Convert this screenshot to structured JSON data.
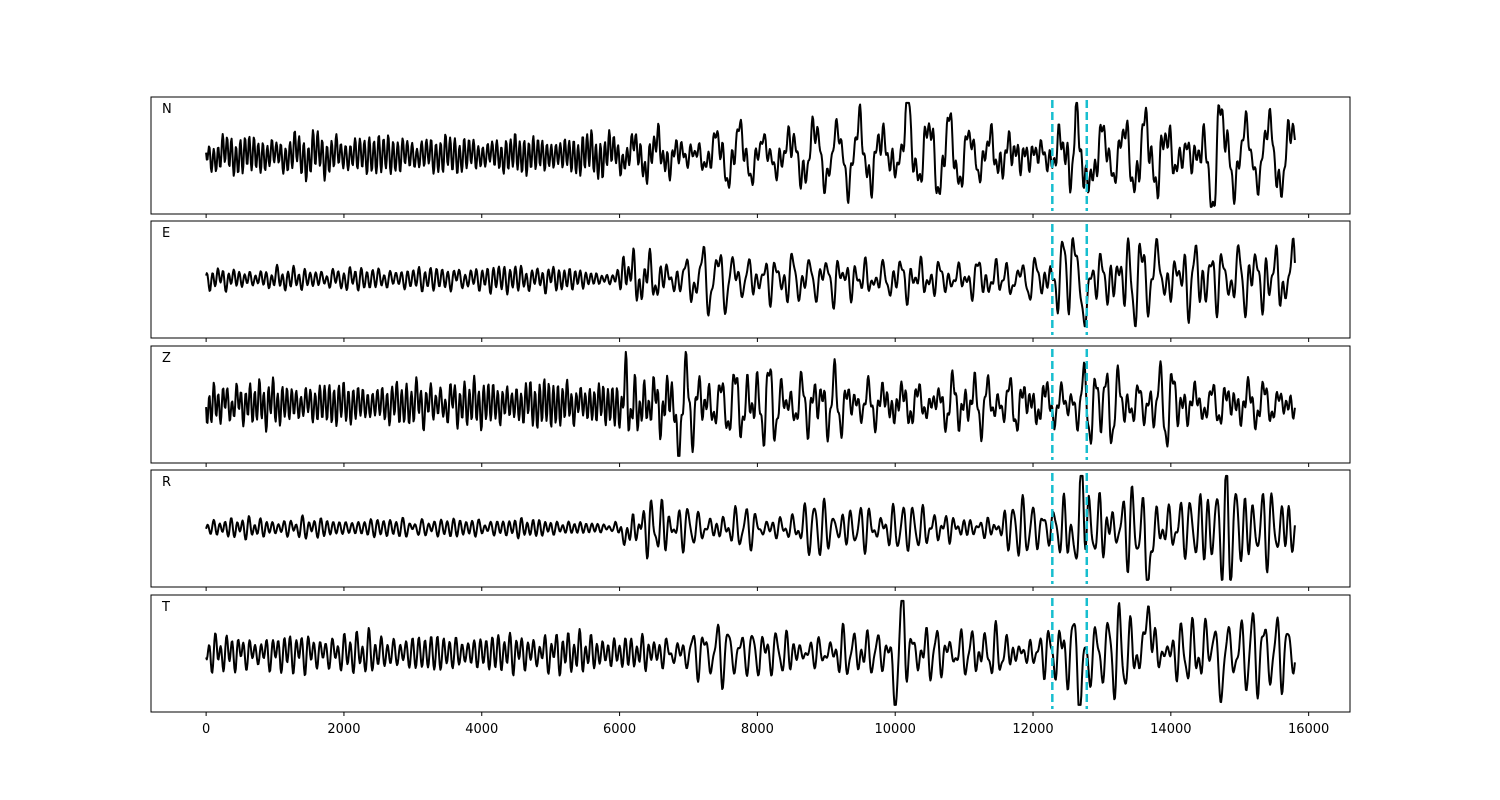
{
  "chart_data": {
    "type": "line",
    "title": "",
    "xlabel": "",
    "ylabel": "",
    "xlim": [
      -800,
      16600
    ],
    "x_end": 15800,
    "xticks": [
      0,
      2000,
      4000,
      6000,
      8000,
      10000,
      12000,
      14000,
      16000
    ],
    "xtick_labels": [
      "0",
      "2000",
      "4000",
      "6000",
      "8000",
      "10000",
      "12000",
      "14000",
      "16000"
    ],
    "grid": false,
    "legend": "none",
    "line_color": "#000000",
    "pick_color": "#17becf",
    "picks": [
      12280,
      12780
    ],
    "channels": [
      {
        "label": "N",
        "envelope": [
          [
            0,
            0.3
          ],
          [
            2000,
            0.35
          ],
          [
            4000,
            0.3
          ],
          [
            6000,
            0.35
          ],
          [
            8000,
            0.45
          ],
          [
            10000,
            0.5
          ],
          [
            12000,
            0.45
          ],
          [
            12500,
            0.6
          ],
          [
            13000,
            0.55
          ],
          [
            14000,
            0.6
          ],
          [
            15800,
            0.45
          ]
        ],
        "events": [
          {
            "x": 10180,
            "amp": 0.95,
            "width": 60
          },
          {
            "x": 12620,
            "amp": 0.75,
            "width": 60
          },
          {
            "x": 12740,
            "amp": -1.0,
            "width": 60
          },
          {
            "x": 14620,
            "amp": -1.0,
            "width": 70
          },
          {
            "x": 14680,
            "amp": 0.95,
            "width": 60
          }
        ]
      },
      {
        "label": "E",
        "envelope": [
          [
            0,
            0.15
          ],
          [
            4000,
            0.2
          ],
          [
            4600,
            0.25
          ],
          [
            5500,
            0.15
          ],
          [
            5900,
            0.1
          ],
          [
            6100,
            0.35
          ],
          [
            8000,
            0.4
          ],
          [
            10000,
            0.4
          ],
          [
            12000,
            0.3
          ],
          [
            12500,
            0.5
          ],
          [
            13000,
            0.6
          ],
          [
            14000,
            0.6
          ],
          [
            15800,
            0.55
          ]
        ],
        "events": [
          {
            "x": 6080,
            "amp": 0.4,
            "width": 50
          },
          {
            "x": 12580,
            "amp": 0.9,
            "width": 60
          },
          {
            "x": 12720,
            "amp": -1.0,
            "width": 60
          },
          {
            "x": 13680,
            "amp": -0.7,
            "width": 60
          },
          {
            "x": 13720,
            "amp": 1.0,
            "width": 60
          }
        ]
      },
      {
        "label": "Z",
        "envelope": [
          [
            0,
            0.35
          ],
          [
            3000,
            0.35
          ],
          [
            5000,
            0.4
          ],
          [
            5900,
            0.35
          ],
          [
            6500,
            0.65
          ],
          [
            8000,
            0.6
          ],
          [
            10000,
            0.5
          ],
          [
            12000,
            0.45
          ],
          [
            14000,
            0.5
          ],
          [
            15800,
            0.45
          ]
        ],
        "events": [
          {
            "x": 6030,
            "amp": -0.6,
            "width": 50
          },
          {
            "x": 6090,
            "amp": 1.0,
            "width": 60
          },
          {
            "x": 6160,
            "amp": -0.6,
            "width": 50
          },
          {
            "x": 6840,
            "amp": -0.55,
            "width": 60
          }
        ]
      },
      {
        "label": "R",
        "envelope": [
          [
            0,
            0.15
          ],
          [
            5000,
            0.15
          ],
          [
            5900,
            0.05
          ],
          [
            6200,
            0.35
          ],
          [
            8000,
            0.35
          ],
          [
            10000,
            0.35
          ],
          [
            12000,
            0.3
          ],
          [
            12500,
            0.55
          ],
          [
            13000,
            0.7
          ],
          [
            14000,
            0.6
          ],
          [
            15800,
            0.5
          ]
        ],
        "events": [
          {
            "x": 6080,
            "amp": -0.3,
            "width": 50
          },
          {
            "x": 12700,
            "amp": 1.0,
            "width": 70
          },
          {
            "x": 12620,
            "amp": -0.7,
            "width": 60
          },
          {
            "x": 13680,
            "amp": -1.0,
            "width": 60
          }
        ]
      },
      {
        "label": "T",
        "envelope": [
          [
            0,
            0.25
          ],
          [
            2000,
            0.3
          ],
          [
            4000,
            0.3
          ],
          [
            6000,
            0.3
          ],
          [
            8000,
            0.4
          ],
          [
            10000,
            0.45
          ],
          [
            12000,
            0.4
          ],
          [
            12500,
            0.55
          ],
          [
            13500,
            0.5
          ],
          [
            14000,
            0.6
          ],
          [
            15800,
            0.4
          ]
        ],
        "events": [
          {
            "x": 10000,
            "amp": -0.8,
            "width": 60
          },
          {
            "x": 10100,
            "amp": 0.8,
            "width": 60
          },
          {
            "x": 12720,
            "amp": -0.85,
            "width": 60
          },
          {
            "x": 13680,
            "amp": 1.0,
            "width": 60
          },
          {
            "x": 14680,
            "amp": -1.0,
            "width": 60
          },
          {
            "x": 14620,
            "amp": 0.85,
            "width": 60
          }
        ]
      }
    ]
  }
}
